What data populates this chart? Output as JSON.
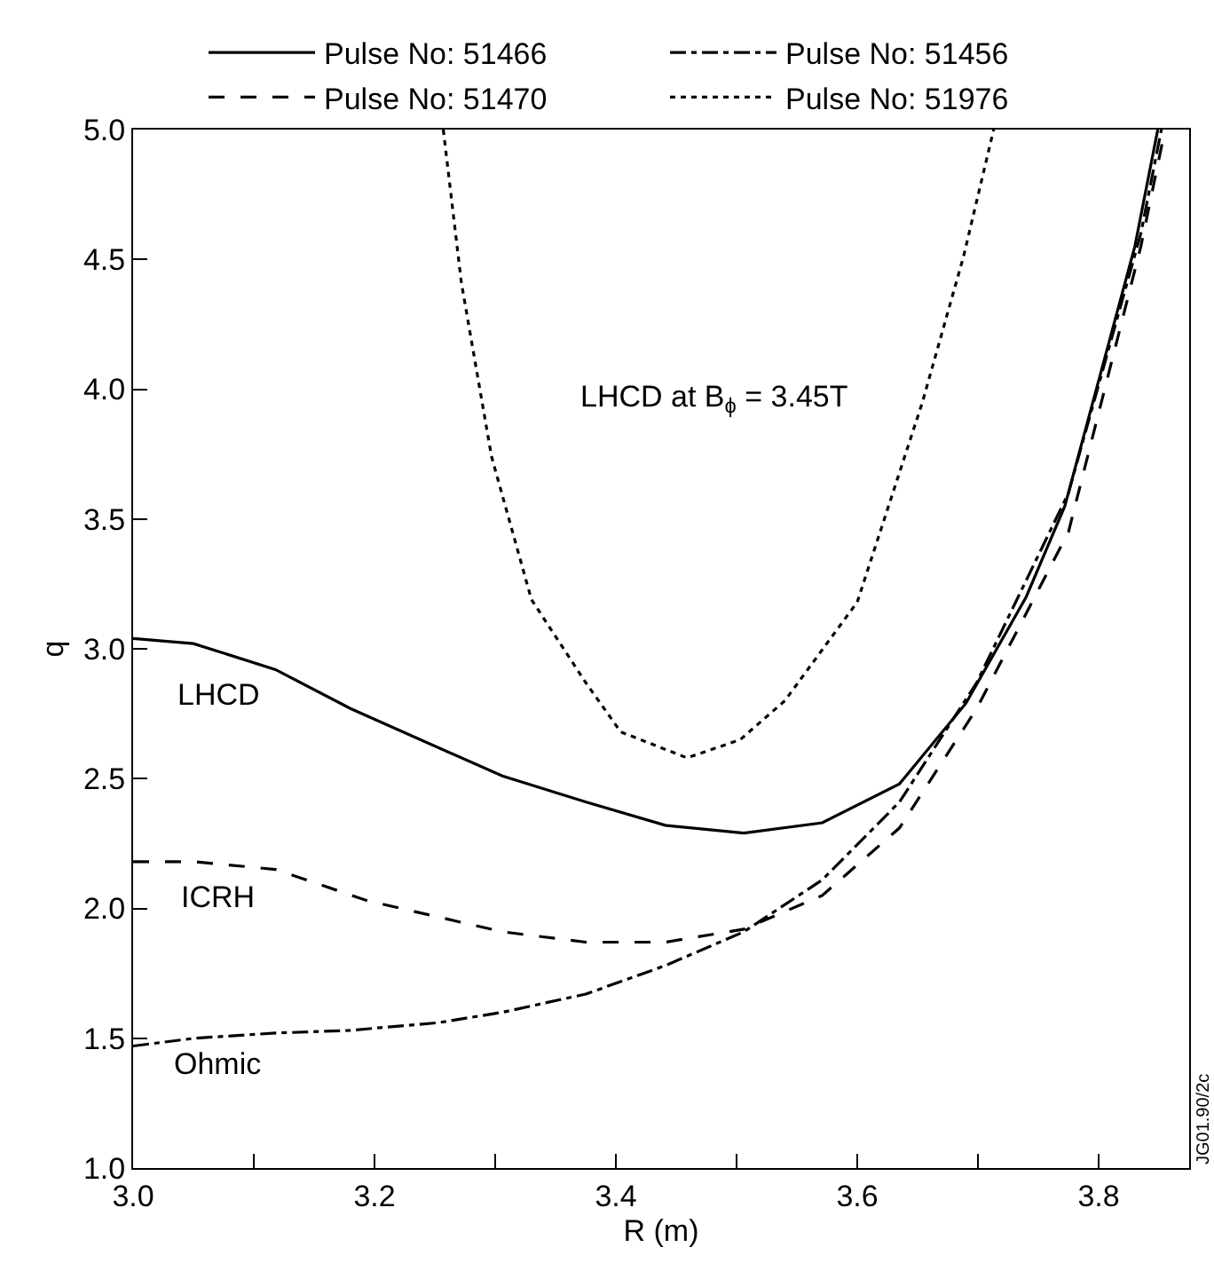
{
  "chart_data": {
    "type": "line",
    "xlabel": "R (m)",
    "ylabel": "q",
    "xlim": [
      3.0,
      3.875
    ],
    "ylim": [
      1.0,
      5.0
    ],
    "xticks": [
      {
        "value": 3.0,
        "label": "3.0"
      },
      {
        "value": 3.1,
        "label": null
      },
      3.2,
      {
        "value": 3.3,
        "label": null
      },
      3.4,
      {
        "value": 3.5,
        "label": null
      },
      3.6,
      {
        "value": 3.7,
        "label": null
      },
      3.8
    ],
    "yticks": [
      {
        "value": 1.0,
        "label": "1.0"
      },
      1.5,
      {
        "value": 2.0,
        "label": "2.0"
      },
      2.5,
      {
        "value": 3.0,
        "label": "3.0"
      },
      3.5,
      {
        "value": 4.0,
        "label": "4.0"
      },
      4.5,
      {
        "value": 5.0,
        "label": "5.0"
      }
    ],
    "legend": "top",
    "marker": "none",
    "series": [
      {
        "name": "Pulse No: 51466",
        "color": "#000000",
        "line_style": "solid",
        "x": [
          3.0,
          3.05,
          3.118,
          3.18,
          3.306,
          3.375,
          3.441,
          3.506,
          3.571,
          3.635,
          3.69,
          3.74,
          3.772,
          3.83,
          3.849
        ],
        "values": [
          3.04,
          3.02,
          2.92,
          2.77,
          2.51,
          2.41,
          2.32,
          2.29,
          2.33,
          2.48,
          2.79,
          3.2,
          3.55,
          4.55,
          5.0
        ]
      },
      {
        "name": "Pulse No: 51456",
        "color": "#000000",
        "line_style": "dashdot",
        "x": [
          3.0,
          3.051,
          3.118,
          3.179,
          3.253,
          3.306,
          3.375,
          3.441,
          3.506,
          3.571,
          3.635,
          3.699,
          3.775,
          3.835,
          3.852
        ],
        "values": [
          1.47,
          1.5,
          1.52,
          1.53,
          1.56,
          1.6,
          1.67,
          1.78,
          1.91,
          2.11,
          2.41,
          2.87,
          3.6,
          4.6,
          5.0
        ]
      },
      {
        "name": "Pulse No: 51470",
        "color": "#000000",
        "line_style": "dashed",
        "x": [
          3.0,
          3.051,
          3.118,
          3.194,
          3.306,
          3.375,
          3.441,
          3.506,
          3.571,
          3.635,
          3.699,
          3.775,
          3.835,
          3.855
        ],
        "values": [
          2.18,
          2.18,
          2.15,
          2.03,
          1.91,
          1.87,
          1.87,
          1.92,
          2.05,
          2.31,
          2.77,
          3.45,
          4.55,
          5.0
        ]
      },
      {
        "name": "Pulse No: 51976",
        "color": "#000000",
        "line_style": "dotted",
        "x": [
          3.257,
          3.272,
          3.297,
          3.33,
          3.375,
          3.404,
          3.459,
          3.503,
          3.54,
          3.6,
          3.654,
          3.688,
          3.713
        ],
        "values": [
          5.0,
          4.41,
          3.74,
          3.19,
          2.87,
          2.68,
          2.58,
          2.65,
          2.8,
          3.18,
          3.95,
          4.51,
          5.0
        ]
      }
    ],
    "annotations": [
      "LHCD",
      "ICRH",
      "Ohmic",
      "LHCD at B$_{ϕ}$ = 3.45T",
      "JG01.90/2c"
    ]
  }
}
